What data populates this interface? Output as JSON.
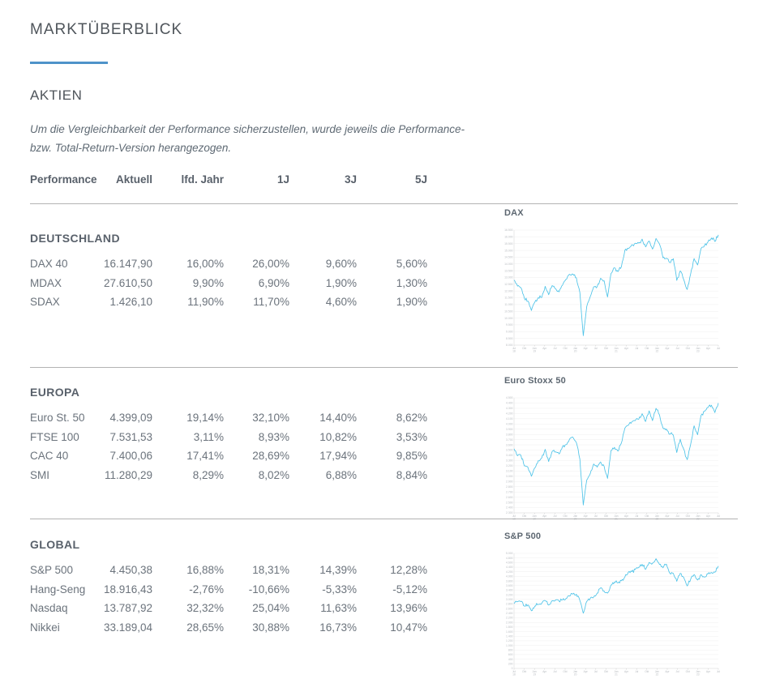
{
  "page": {
    "title": "MARKTÜBERBLICK",
    "section_title": "AKTIEN",
    "disclaimer_line1": "Um die Vergleichbarkeit der Performance sicherzustellen, wurde jeweils die Performance-",
    "disclaimer_line2": "bzw. Total-Return-Version herangezogen.",
    "accent_color": "#4e93c9",
    "divider_color": "#b3b3b3"
  },
  "table": {
    "headers": [
      "Performance",
      "Aktuell",
      "lfd. Jahr",
      "1J",
      "3J",
      "5J"
    ],
    "groups": [
      {
        "name": "DEUTSCHLAND",
        "rows": [
          {
            "label": "DAX 40",
            "values": [
              "16.147,90",
              "16,00%",
              "26,00%",
              "9,60%",
              "5,60%"
            ]
          },
          {
            "label": "MDAX",
            "values": [
              "27.610,50",
              "9,90%",
              "6,90%",
              "1,90%",
              "1,30%"
            ]
          },
          {
            "label": "SDAX",
            "values": [
              "1.426,10",
              "11,90%",
              "11,70%",
              "4,60%",
              "1,90%"
            ]
          }
        ]
      },
      {
        "name": "EUROPA",
        "rows": [
          {
            "label": "Euro St. 50",
            "values": [
              "4.399,09",
              "19,14%",
              "32,10%",
              "14,40%",
              "8,62%"
            ]
          },
          {
            "label": "FTSE 100",
            "values": [
              "7.531,53",
              "3,11%",
              "8,93%",
              "10,82%",
              "3,53%"
            ]
          },
          {
            "label": "CAC 40",
            "values": [
              "7.400,06",
              "17,41%",
              "28,69%",
              "17,94%",
              "9,85%"
            ]
          },
          {
            "label": "SMI",
            "values": [
              "11.280,29",
              "8,29%",
              "8,02%",
              "6,88%",
              "8,84%"
            ]
          }
        ]
      },
      {
        "name": "GLOBAL",
        "rows": [
          {
            "label": "S&P 500",
            "values": [
              "4.450,38",
              "16,88%",
              "18,31%",
              "14,39%",
              "12,28%"
            ]
          },
          {
            "label": "Hang-Seng",
            "values": [
              "18.916,43",
              "-2,76%",
              "-10,66%",
              "-5,33%",
              "-5,12%"
            ]
          },
          {
            "label": "Nasdaq",
            "values": [
              "13.787,92",
              "32,32%",
              "25,04%",
              "11,63%",
              "13,96%"
            ]
          },
          {
            "label": "Nikkei",
            "values": [
              "33.189,04",
              "28,65%",
              "30,88%",
              "16,73%",
              "10,47%"
            ]
          }
        ]
      }
    ]
  },
  "chart_data": [
    {
      "type": "line",
      "title": "DAX",
      "x_start": "2018-07",
      "x_interval": "month",
      "values": [
        12805,
        12364,
        12247,
        11447,
        11257,
        10559,
        11173,
        11515,
        11526,
        12344,
        11727,
        12399,
        12170,
        11939,
        12428,
        12867,
        13236,
        13249,
        12982,
        11890,
        8700,
        10862,
        11587,
        12311,
        12313,
        12945,
        12761,
        11556,
        13291,
        13719,
        13432,
        13786,
        15008,
        15136,
        15421,
        15531,
        15544,
        15835,
        15261,
        15689,
        15100,
        15885,
        15471,
        14461,
        14415,
        14098,
        14388,
        12784,
        13484,
        12835,
        12114,
        13254,
        14397,
        13924,
        15128,
        15365,
        15629,
        15922,
        15664,
        16148
      ],
      "ylim": [
        8000,
        16500
      ],
      "ytick_step": 500,
      "xtick_labels": [
        [
          "Jul",
          "18"
        ],
        [
          "Okt"
        ],
        [
          "Jan",
          "19"
        ],
        [
          "Apr"
        ],
        [
          "Jul"
        ],
        [
          "Okt"
        ],
        [
          "Jan",
          "20"
        ],
        [
          "Apr"
        ],
        [
          "Jul"
        ],
        [
          "Okt"
        ],
        [
          "Jan",
          "21"
        ],
        [
          "Apr"
        ],
        [
          "Jul"
        ],
        [
          "Okt"
        ],
        [
          "Jan",
          "22"
        ],
        [
          "Apr"
        ],
        [
          "Jul"
        ],
        [
          "Okt"
        ],
        [
          "Jan",
          "23"
        ],
        [
          "Apr"
        ],
        [
          "Jul"
        ]
      ],
      "grid": true,
      "legend": false,
      "line_color": "#4ec3e8"
    },
    {
      "type": "line",
      "title": "Euro Stoxx 50",
      "x_start": "2018-07",
      "x_interval": "month",
      "values": [
        3525,
        3392,
        3399,
        3197,
        3173,
        3001,
        3159,
        3298,
        3352,
        3515,
        3280,
        3474,
        3467,
        3427,
        3569,
        3604,
        3704,
        3745,
        3641,
        3329,
        2450,
        2928,
        3050,
        3234,
        3174,
        3273,
        3193,
        2958,
        3493,
        3553,
        3481,
        3636,
        3919,
        3974,
        4039,
        4064,
        4089,
        4196,
        4048,
        4251,
        4063,
        4298,
        4175,
        3924,
        3903,
        3803,
        3789,
        3455,
        3708,
        3517,
        3318,
        3608,
        3965,
        3794,
        4163,
        4238,
        4315,
        4359,
        4218,
        4399
      ],
      "ylim": [
        2300,
        4500
      ],
      "ytick_step": 100,
      "xtick_labels": [
        [
          "Jul",
          "18"
        ],
        [
          "Okt"
        ],
        [
          "Jan",
          "19"
        ],
        [
          "Apr"
        ],
        [
          "Jul"
        ],
        [
          "Okt"
        ],
        [
          "Jan",
          "20"
        ],
        [
          "Apr"
        ],
        [
          "Jul"
        ],
        [
          "Okt"
        ],
        [
          "Jan",
          "21"
        ],
        [
          "Apr"
        ],
        [
          "Jul"
        ],
        [
          "Okt"
        ],
        [
          "Jan",
          "22"
        ],
        [
          "Apr"
        ],
        [
          "Jul"
        ],
        [
          "Okt"
        ],
        [
          "Jan",
          "23"
        ],
        [
          "Apr"
        ],
        [
          "Jul"
        ]
      ],
      "grid": true,
      "legend": false,
      "line_color": "#4ec3e8"
    },
    {
      "type": "line",
      "title": "S&P 500",
      "x_start": "2018-07",
      "x_interval": "month",
      "values": [
        2816,
        2902,
        2914,
        2712,
        2760,
        2507,
        2704,
        2784,
        2834,
        2946,
        2752,
        2942,
        2980,
        2926,
        2977,
        3038,
        3141,
        3231,
        3226,
        2954,
        2400,
        2912,
        3044,
        3100,
        3271,
        3500,
        3363,
        3270,
        3622,
        3756,
        3714,
        3811,
        3973,
        4181,
        4204,
        4298,
        4395,
        4523,
        4308,
        4605,
        4567,
        4766,
        4516,
        4374,
        4530,
        4132,
        4132,
        3785,
        4130,
        3955,
        3586,
        3872,
        4080,
        3840,
        4077,
        3970,
        4109,
        4169,
        4180,
        4450
      ],
      "ylim": [
        0,
        5000
      ],
      "ytick_step": 200,
      "xtick_labels": [
        [
          "Jul",
          "18"
        ],
        [
          "Okt"
        ],
        [
          "Jan",
          "19"
        ],
        [
          "Apr"
        ],
        [
          "Jul"
        ],
        [
          "Okt"
        ],
        [
          "Jan",
          "20"
        ],
        [
          "Apr"
        ],
        [
          "Jul"
        ],
        [
          "Okt"
        ],
        [
          "Jan",
          "21"
        ],
        [
          "Apr"
        ],
        [
          "Jul"
        ],
        [
          "Okt"
        ],
        [
          "Jan",
          "22"
        ],
        [
          "Apr"
        ],
        [
          "Jul"
        ],
        [
          "Okt"
        ],
        [
          "Jan",
          "23"
        ],
        [
          "Apr"
        ],
        [
          "Jul"
        ]
      ],
      "grid": true,
      "legend": false,
      "line_color": "#4ec3e8"
    }
  ]
}
